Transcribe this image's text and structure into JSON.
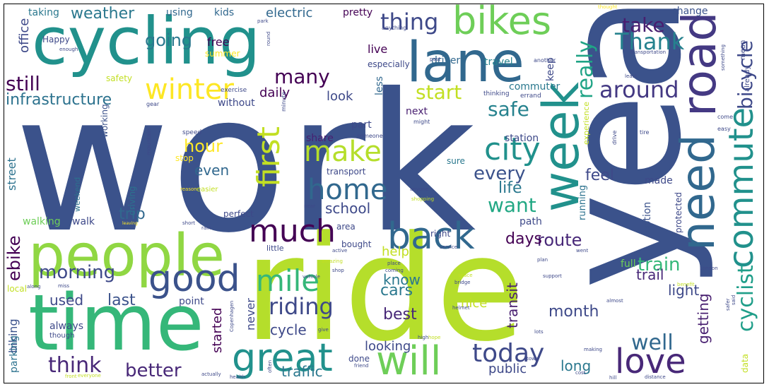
{
  "words": [
    {
      "text": "work",
      "color": "#3b528b"
    },
    {
      "text": "year",
      "color": "#3b528b"
    },
    {
      "text": "ride",
      "color": "#b5de2b"
    },
    {
      "text": "cycling",
      "color": "#21918c"
    },
    {
      "text": "lane",
      "color": "#31688e"
    },
    {
      "text": "time",
      "color": "#35b779"
    },
    {
      "text": "people",
      "color": "#90d743"
    },
    {
      "text": "need",
      "color": "#31688e"
    },
    {
      "text": "road",
      "color": "#443983"
    },
    {
      "text": "commute",
      "color": "#21918c"
    },
    {
      "text": "bikes",
      "color": "#6ece58"
    },
    {
      "text": "week",
      "color": "#21918c"
    },
    {
      "text": "great",
      "color": "#21918c"
    },
    {
      "text": "will",
      "color": "#6ece58"
    },
    {
      "text": "back",
      "color": "#31688e"
    },
    {
      "text": "make",
      "color": "#b5de2b"
    },
    {
      "text": "home",
      "color": "#31688e"
    },
    {
      "text": "good",
      "color": "#3b528b"
    },
    {
      "text": "much",
      "color": "#440154"
    },
    {
      "text": "first",
      "color": "#c2df23"
    },
    {
      "text": "city",
      "color": "#21918c"
    },
    {
      "text": "love",
      "color": "#482878"
    },
    {
      "text": "today",
      "color": "#3e4989"
    },
    {
      "text": "mile",
      "color": "#35b779"
    },
    {
      "text": "winter",
      "color": "#fde725"
    },
    {
      "text": "cyclist",
      "color": "#1f9e89"
    },
    {
      "text": "bicycle",
      "color": "#3e4989"
    },
    {
      "text": "Thank",
      "color": "#26828e"
    },
    {
      "text": "take",
      "color": "#481f70"
    },
    {
      "text": "around",
      "color": "#443983"
    },
    {
      "text": "really",
      "color": "#20a486"
    },
    {
      "text": "thing",
      "color": "#3e4989"
    },
    {
      "text": "riding",
      "color": "#3e4989"
    },
    {
      "text": "well",
      "color": "#31688e"
    },
    {
      "text": "think",
      "color": "#482878"
    },
    {
      "text": "better",
      "color": "#482878"
    },
    {
      "text": "morning",
      "color": "#3e4989"
    },
    {
      "text": "many",
      "color": "#440154"
    },
    {
      "text": "still",
      "color": "#440154"
    },
    {
      "text": "start",
      "color": "#c2df23"
    },
    {
      "text": "safe",
      "color": "#26828e"
    },
    {
      "text": "every",
      "color": "#3b528b"
    },
    {
      "text": "want",
      "color": "#22a884"
    },
    {
      "text": "train",
      "color": "#35b779"
    },
    {
      "text": "route",
      "color": "#482878"
    },
    {
      "text": "infrastructure",
      "color": "#2c728e"
    },
    {
      "text": "weather",
      "color": "#2a788e"
    },
    {
      "text": "going",
      "color": "#2a788e"
    },
    {
      "text": "hour",
      "color": "#fde725"
    },
    {
      "text": "ebike",
      "color": "#440154"
    },
    {
      "text": "trip",
      "color": "#31688e"
    },
    {
      "text": "school",
      "color": "#3e4989"
    },
    {
      "text": "used",
      "color": "#3e4989"
    },
    {
      "text": "last",
      "color": "#3b528b"
    },
    {
      "text": "month",
      "color": "#3e4989"
    },
    {
      "text": "life",
      "color": "#2a788e"
    },
    {
      "text": "feel",
      "color": "#3e4989"
    },
    {
      "text": "days",
      "color": "#440154"
    },
    {
      "text": "best",
      "color": "#482878"
    },
    {
      "text": "cars",
      "color": "#2a788e"
    },
    {
      "text": "know",
      "color": "#2a788e"
    },
    {
      "text": "trail",
      "color": "#482878"
    },
    {
      "text": "light",
      "color": "#3e4989"
    },
    {
      "text": "daily",
      "color": "#440154"
    },
    {
      "text": "even",
      "color": "#31688e"
    },
    {
      "text": "look",
      "color": "#3e4989"
    },
    {
      "text": "cycle",
      "color": "#3e4989"
    },
    {
      "text": "traffic",
      "color": "#2a788e"
    },
    {
      "text": "long",
      "color": "#2a788e"
    },
    {
      "text": "getting",
      "color": "#481f70"
    },
    {
      "text": "transit",
      "color": "#481f70"
    },
    {
      "text": "nice",
      "color": "#c2df23"
    },
    {
      "text": "help",
      "color": "#c2df23"
    },
    {
      "text": "started",
      "color": "#440154"
    },
    {
      "text": "never",
      "color": "#3e4989"
    },
    {
      "text": "looking",
      "color": "#3e4989"
    },
    {
      "text": "public",
      "color": "#3e4989"
    },
    {
      "text": "biking",
      "color": "#3b528b"
    },
    {
      "text": "parking",
      "color": "#2c728e"
    },
    {
      "text": "street",
      "color": "#2c728e"
    },
    {
      "text": "office",
      "color": "#3e4989"
    },
    {
      "text": "free",
      "color": "#440154"
    },
    {
      "text": "live",
      "color": "#440154"
    },
    {
      "text": "electric",
      "color": "#31688e"
    },
    {
      "text": "pretty",
      "color": "#440154"
    },
    {
      "text": "kids",
      "color": "#31688e"
    },
    {
      "text": "taking",
      "color": "#2a788e"
    },
    {
      "text": "using",
      "color": "#31688e"
    },
    {
      "text": "driver",
      "color": "#31688e"
    },
    {
      "text": "travel",
      "color": "#26828e"
    },
    {
      "text": "change",
      "color": "#3b528b"
    },
    {
      "text": "keep",
      "color": "#3e4989"
    },
    {
      "text": "commuter",
      "color": "#2a788e"
    },
    {
      "text": "especially",
      "color": "#3e4989"
    },
    {
      "text": "summer",
      "color": "#fde725"
    },
    {
      "text": "safety",
      "color": "#c2df23"
    },
    {
      "text": "without",
      "color": "#3e4989"
    },
    {
      "text": "less",
      "color": "#31688e"
    },
    {
      "text": "part",
      "color": "#3e4989"
    },
    {
      "text": "next",
      "color": "#481f70"
    },
    {
      "text": "station",
      "color": "#3e4989"
    },
    {
      "text": "share",
      "color": "#481f70"
    },
    {
      "text": "sure",
      "color": "#2a788e"
    },
    {
      "text": "transport",
      "color": "#3e4989"
    },
    {
      "text": "stop",
      "color": "#fde725"
    },
    {
      "text": "working",
      "color": "#3b528b"
    },
    {
      "text": "weekend",
      "color": "#2c728e"
    },
    {
      "text": "walking",
      "color": "#6ece58"
    },
    {
      "text": "walk",
      "color": "#3e4989"
    },
    {
      "text": "perfect",
      "color": "#3e4989"
    },
    {
      "text": "driving",
      "color": "#2c728e"
    },
    {
      "text": "area",
      "color": "#3e4989"
    },
    {
      "text": "bought",
      "color": "#3e4989"
    },
    {
      "text": "right",
      "color": "#3e4989"
    },
    {
      "text": "path",
      "color": "#3e4989"
    },
    {
      "text": "running",
      "color": "#2c728e"
    },
    {
      "text": "option",
      "color": "#3b528b"
    },
    {
      "text": "made",
      "color": "#3e4989"
    },
    {
      "text": "protected",
      "color": "#3e4989"
    },
    {
      "text": "full",
      "color": "#6ece58"
    },
    {
      "text": "experience",
      "color": "#c2df23"
    },
    {
      "text": "Happy",
      "color": "#3e4989"
    },
    {
      "text": "always",
      "color": "#3e4989"
    },
    {
      "text": "point",
      "color": "#3e4989"
    },
    {
      "text": "local",
      "color": "#c2df23"
    },
    {
      "text": "little",
      "color": "#3e4989"
    },
    {
      "text": "done",
      "color": "#3e4989"
    },
    {
      "text": "data",
      "color": "#c2df23"
    },
    {
      "text": "already",
      "color": "#3e4989"
    },
    {
      "text": "mean",
      "color": "#3e4989"
    },
    {
      "text": "though",
      "color": "#3e4989"
    },
    {
      "text": "easier",
      "color": "#c2df23"
    },
    {
      "text": "exercise",
      "color": "#3e4989"
    },
    {
      "text": "thinking",
      "color": "#3e4989"
    },
    {
      "text": "errand",
      "color": "#3e4989"
    },
    {
      "text": "speed",
      "color": "#3e4989"
    },
    {
      "text": "mountain",
      "color": "#3e4989"
    },
    {
      "text": "gear",
      "color": "#3e4989"
    },
    {
      "text": "minute",
      "color": "#3e4989"
    },
    {
      "text": "might",
      "color": "#3e4989"
    },
    {
      "text": "someone",
      "color": "#3e4989"
    },
    {
      "text": "drive",
      "color": "#3e4989"
    },
    {
      "text": "tire",
      "color": "#3e4989"
    },
    {
      "text": "easy",
      "color": "#3e4989"
    },
    {
      "text": "come",
      "color": "#3e4989"
    },
    {
      "text": "anything",
      "color": "#3e4989"
    },
    {
      "text": "enough",
      "color": "#3e4989"
    },
    {
      "text": "park",
      "color": "#3e4989"
    },
    {
      "text": "round",
      "color": "#3e4989"
    },
    {
      "text": "past",
      "color": "#3e4989"
    },
    {
      "text": "another",
      "color": "#3e4989"
    },
    {
      "text": "thought",
      "color": "#fde725"
    },
    {
      "text": "transportation",
      "color": "#3e4989"
    },
    {
      "text": "least",
      "color": "#3e4989"
    },
    {
      "text": "something",
      "color": "#3e4989"
    },
    {
      "text": "reason",
      "color": "#fde725"
    },
    {
      "text": "anyone",
      "color": "#3e4989"
    },
    {
      "text": "shopping",
      "color": "#c2df23"
    },
    {
      "text": "near",
      "color": "#3e4989"
    },
    {
      "text": "rain",
      "color": "#3e4989"
    },
    {
      "text": "short",
      "color": "#3e4989"
    },
    {
      "text": "leaving",
      "color": "#fde725"
    },
    {
      "text": "active",
      "color": "#3e4989"
    },
    {
      "text": "amazing",
      "color": "#c2df23"
    },
    {
      "text": "shop",
      "color": "#3e4989"
    },
    {
      "text": "vehicle",
      "color": "#3e4989"
    },
    {
      "text": "coming",
      "color": "#3e4989"
    },
    {
      "text": "service",
      "color": "#3e4989"
    },
    {
      "text": "place",
      "color": "#3e4989"
    },
    {
      "text": "plan",
      "color": "#3e4989"
    },
    {
      "text": "went",
      "color": "#3e4989"
    },
    {
      "text": "space",
      "color": "#c2df23"
    },
    {
      "text": "bridge",
      "color": "#3e4989"
    },
    {
      "text": "support",
      "color": "#3e4989"
    },
    {
      "text": "London",
      "color": "#3e4989"
    },
    {
      "text": "benefit",
      "color": "#c2df23"
    },
    {
      "text": "helmet",
      "color": "#3e4989"
    },
    {
      "text": "almost",
      "color": "#3e4989"
    },
    {
      "text": "safer",
      "color": "#3e4989"
    },
    {
      "text": "said",
      "color": "#3e4989"
    },
    {
      "text": "along",
      "color": "#3e4989"
    },
    {
      "text": "miss",
      "color": "#3e4989"
    },
    {
      "text": "Copenhagen",
      "color": "#3e4989"
    },
    {
      "text": "give",
      "color": "#3e4989"
    },
    {
      "text": "high",
      "color": "#3e4989"
    },
    {
      "text": "hope",
      "color": "#c2df23"
    },
    {
      "text": "lots",
      "color": "#3e4989"
    },
    {
      "text": "town",
      "color": "#3e4989"
    },
    {
      "text": "making",
      "color": "#3e4989"
    },
    {
      "text": "friend",
      "color": "#3e4989"
    },
    {
      "text": "often",
      "color": "#3e4989"
    },
    {
      "text": "actually",
      "color": "#3e4989"
    },
    {
      "text": "health",
      "color": "#3e4989"
    },
    {
      "text": "everyone",
      "color": "#c2df23"
    },
    {
      "text": "front",
      "color": "#c2df23"
    },
    {
      "text": "cost",
      "color": "#3e4989"
    },
    {
      "text": "hill",
      "color": "#3e4989"
    },
    {
      "text": "distance",
      "color": "#3e4989"
    }
  ]
}
